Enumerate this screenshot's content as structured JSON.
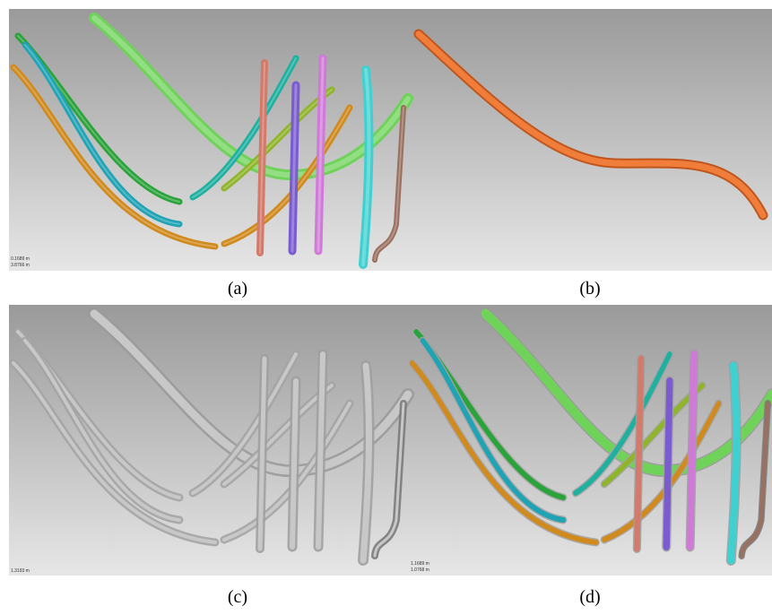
{
  "panels": [
    {
      "label": "(a)",
      "scale_labels": [
        "0.1689 m",
        "3.8766 m"
      ]
    },
    {
      "label": "(b)"
    },
    {
      "label": "(c)",
      "scale_labels": [
        "1.3193 m"
      ]
    },
    {
      "label": "(d)",
      "scale_labels": [
        "1.1689 m",
        "1.0768 m"
      ]
    }
  ]
}
